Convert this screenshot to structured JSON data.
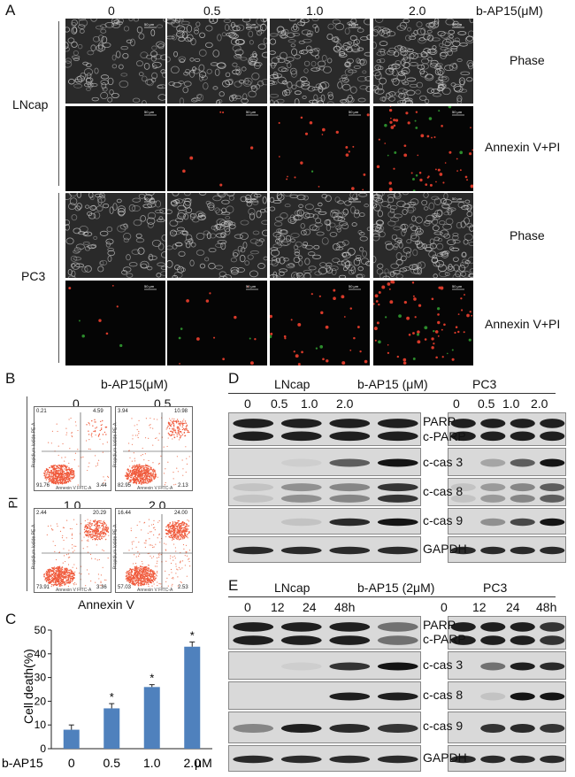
{
  "panelA": {
    "label": "A",
    "concentrations": [
      "0",
      "0.5",
      "1.0",
      "2.0"
    ],
    "treatment_label": "b-AP15(μM)",
    "cell_lines": [
      "LNcap",
      "PC3"
    ],
    "row_labels": [
      "Phase",
      "Annexin V+PI",
      "Phase",
      "Annexin V+PI"
    ],
    "scale_bar": "50 μm"
  },
  "panelB": {
    "label": "B",
    "treatment_label": "b-AP15(μM)",
    "y_label": "PI",
    "x_label": "Annexin V",
    "plot_x_axis": "Annexin V FITC-A",
    "plot_y_axis": "Propidium Iodide PE-A",
    "plots": [
      {
        "title": "0",
        "ul": "0.21",
        "ur": "4.59",
        "ll": "91.76",
        "lr": "3.44"
      },
      {
        "title": "0.5",
        "ul": "3.94",
        "ur": "10.98",
        "ll": "82.95",
        "lr": "2.13"
      },
      {
        "title": "1.0",
        "ul": "2.44",
        "ur": "20.29",
        "ll": "73.91",
        "lr": "3.36"
      },
      {
        "title": "2.0",
        "ul": "16.44",
        "ur": "24.00",
        "ll": "57.03",
        "lr": "2.53"
      }
    ]
  },
  "panelC": {
    "label": "C",
    "ylabel": "Cell death(%)",
    "xlabel": "b-AP15",
    "unit": "μM",
    "significance": "*",
    "ticks": [
      "0",
      "10",
      "20",
      "30",
      "40",
      "50"
    ]
  },
  "chart_data": {
    "type": "bar",
    "categories": [
      "0",
      "0.5",
      "1.0",
      "2.0"
    ],
    "values": [
      8,
      17,
      26,
      43
    ],
    "errors": [
      2,
      2,
      1,
      2
    ],
    "significant": [
      false,
      true,
      true,
      true
    ],
    "ylabel": "Cell death(%)",
    "xlabel": "b-AP15",
    "ylim": [
      0,
      50
    ],
    "bar_color": "#4f81bd"
  },
  "panelD": {
    "label": "D",
    "left_line": "LNcap",
    "right_line": "PC3",
    "treatment_label": "b-AP15 (μM)",
    "lanes": [
      "0",
      "0.5",
      "1.0",
      "2.0"
    ],
    "proteins": [
      "PARP",
      "c-PARP",
      "c-cas 3",
      "c-cas 8",
      "c-cas 9",
      "GAPDH"
    ]
  },
  "panelE": {
    "label": "E",
    "left_line": "LNcap",
    "right_line": "PC3",
    "treatment_label": "b-AP15 (2μM)",
    "lanes": [
      "0",
      "12",
      "24",
      "48h"
    ],
    "proteins": [
      "PARP",
      "c-PARP",
      "c-cas 3",
      "c-cas 8",
      "c-cas 9",
      "GAPDH"
    ]
  }
}
